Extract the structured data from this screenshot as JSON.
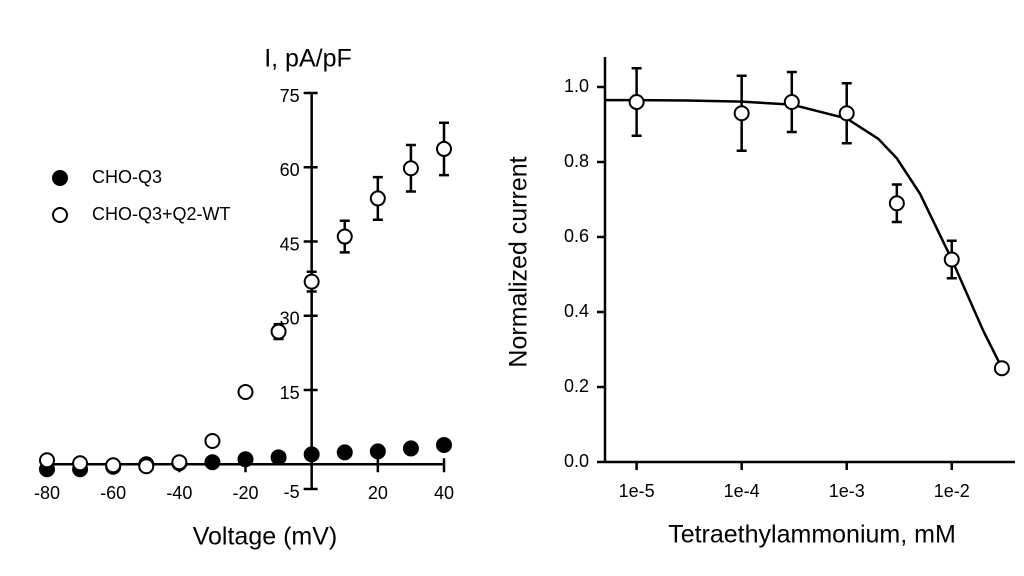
{
  "chart_data": [
    {
      "type": "scatter",
      "y_label": "I, pA/pF",
      "x_label": "Voltage (mV)",
      "x": [
        -80,
        -70,
        -60,
        -50,
        -40,
        -30,
        -20,
        -10,
        0,
        10,
        20,
        30,
        40
      ],
      "series": [
        {
          "name": "CHO-Q3",
          "color": "#000000",
          "marker": "filled",
          "values": [
            -1,
            -1,
            -0.5,
            0,
            0.2,
            0.4,
            1,
            1.4,
            2,
            2.4,
            2.6,
            3.2,
            3.9
          ]
        },
        {
          "name": "CHO-Q3+Q2-WT",
          "color": "#000000",
          "marker": "open",
          "values": [
            0.8,
            0.2,
            -0.2,
            -0.4,
            0.4,
            4.7,
            14.6,
            26.8,
            36.9,
            46,
            53.7,
            59.8,
            63.7
          ],
          "errors": [
            null,
            null,
            null,
            null,
            null,
            null,
            null,
            1.5,
            2,
            3.2,
            4.3,
            4.7,
            5.3
          ]
        }
      ],
      "xlim": [
        -80,
        40
      ],
      "ylim": [
        -5,
        75
      ],
      "xticks": [
        -80,
        -60,
        -40,
        -20,
        20,
        40
      ],
      "yticks": [
        -5,
        15,
        30,
        45,
        60,
        75
      ],
      "axes_cross": "origin",
      "legend": "upper left"
    },
    {
      "type": "scatter",
      "log_x": true,
      "y_label": "Normalized current",
      "x_label": "Tetraethylammonium, mM",
      "x": [
        1e-05,
        0.0001,
        0.0003,
        0.001,
        0.003,
        0.01,
        0.03
      ],
      "series": [
        {
          "color": "#000000",
          "marker": "open",
          "values": [
            0.96,
            0.93,
            0.96,
            0.93,
            0.69,
            0.54,
            0.25
          ],
          "errors": [
            0.09,
            0.1,
            0.08,
            0.08,
            0.05,
            0.05,
            null
          ]
        }
      ],
      "curve": {
        "color": "#000000",
        "x": [
          5e-06,
          1e-05,
          3e-05,
          0.0001,
          0.0003,
          0.001,
          0.002,
          0.003,
          0.005,
          0.01,
          0.02,
          0.03
        ],
        "values": [
          0.965,
          0.965,
          0.964,
          0.961,
          0.953,
          0.916,
          0.862,
          0.81,
          0.715,
          0.54,
          0.349,
          0.251
        ]
      },
      "xlim": [
        5e-06,
        0.04
      ],
      "ylim": [
        0,
        1.08
      ],
      "xticks": [
        {
          "value": 1e-05,
          "label": "1e-5"
        },
        {
          "value": 0.0001,
          "label": "1e-4"
        },
        {
          "value": 0.001,
          "label": "1e-3"
        },
        {
          "value": 0.01,
          "label": "1e-2"
        }
      ],
      "yticks": [
        {
          "value": 0,
          "label": "0.0"
        },
        0.2,
        0.4,
        0.6,
        0.8,
        {
          "value": 1,
          "label": "1.0"
        }
      ],
      "axes_cross": "corner"
    }
  ]
}
